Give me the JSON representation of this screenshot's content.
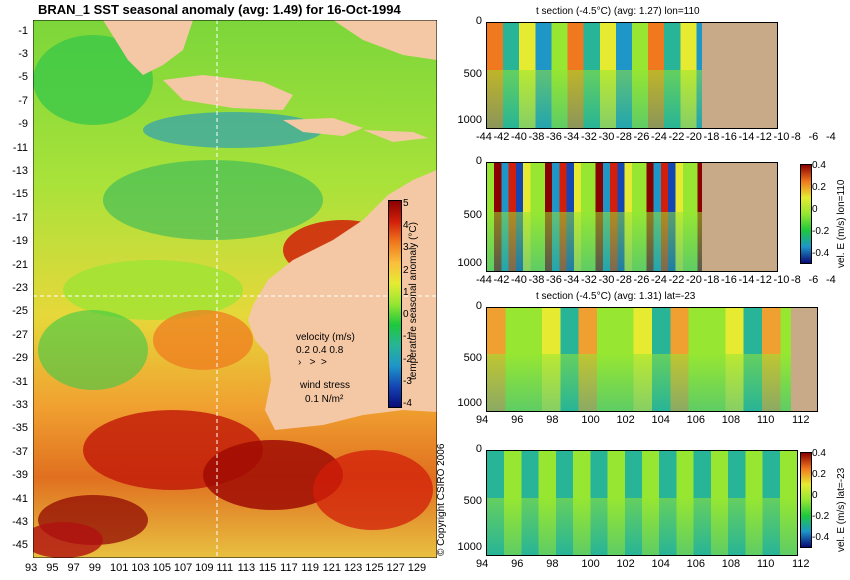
{
  "map": {
    "title": "BRAN_1  SST seasonal anomaly (avg: 1.49) for 16-Oct-1994",
    "lat_labels": [
      "-1",
      "-3",
      "-5",
      "-7",
      "-9",
      "-11",
      "-13",
      "-15",
      "-17",
      "-19",
      "-21",
      "-23",
      "-25",
      "-27",
      "-29",
      "-31",
      "-33",
      "-35",
      "-37",
      "-39",
      "-41",
      "-43",
      "-45"
    ],
    "lon_labels": [
      "93",
      "95",
      "97",
      "99",
      "101",
      "103",
      "105",
      "107",
      "109",
      "111",
      "113",
      "115",
      "117",
      "119",
      "121",
      "123",
      "125",
      "127",
      "129"
    ],
    "colorbar": {
      "label": "temperature seasonal anomaly (°C)",
      "ticks": [
        "5",
        "4",
        "3",
        "2",
        "1",
        "0",
        "-1",
        "-2",
        "-3",
        "-4"
      ],
      "colors": [
        "#8b0000",
        "#d21e0a",
        "#f0781e",
        "#fabe3c",
        "#e6eb32",
        "#96e632",
        "#1ec83c",
        "#28b496",
        "#1e96c8",
        "#1446b4",
        "#0a0a78"
      ]
    },
    "velocity_legend": {
      "title": "velocity (m/s)",
      "values": "0.2 0.4 0.8"
    },
    "wind_legend": {
      "title": "wind stress",
      "value": "0.1 N/m²"
    },
    "copyright": "© Copyright CSIRO 2006",
    "land_color": "#f5c8a5"
  },
  "panels": [
    {
      "title": "t section (-4.5°C) (avg: 1.27) lon=110",
      "x_ticks": [
        "-44",
        "-42",
        "-40",
        "-38",
        "-36",
        "-34",
        "-32",
        "-30",
        "-28",
        "-26",
        "-24",
        "-22",
        "-20",
        "-18",
        "-16",
        "-14",
        "-12",
        "-10",
        "-8",
        "-6",
        "-4"
      ],
      "y_ticks": [
        "0",
        "500",
        "1000"
      ]
    },
    {
      "title": "",
      "x_ticks": [
        "-44",
        "-42",
        "-40",
        "-38",
        "-36",
        "-34",
        "-32",
        "-30",
        "-28",
        "-26",
        "-24",
        "-22",
        "-20",
        "-18",
        "-16",
        "-14",
        "-12",
        "-10",
        "-8",
        "-6",
        "-4"
      ],
      "y_ticks": [
        "0",
        "500",
        "1000"
      ],
      "colorbar_label": "vel. E (m/s) lon=110",
      "colorbar_ticks": [
        "0.4",
        "0.2",
        "0",
        "-0.2",
        "-0.4"
      ]
    },
    {
      "title": "t section (-4.5°C) (avg: 1.31) lat=-23",
      "x_ticks": [
        "94",
        "96",
        "98",
        "100",
        "102",
        "104",
        "106",
        "108",
        "110",
        "112"
      ],
      "y_ticks": [
        "0",
        "500",
        "1000"
      ]
    },
    {
      "title": "",
      "x_ticks": [
        "94",
        "96",
        "98",
        "100",
        "102",
        "104",
        "106",
        "108",
        "110",
        "112"
      ],
      "y_ticks": [
        "0",
        "500",
        "1000"
      ],
      "colorbar_label": "vel. E (m/s) lat=-23",
      "colorbar_ticks": [
        "0.4",
        "0.2",
        "0",
        "-0.2",
        "-0.4"
      ]
    }
  ]
}
